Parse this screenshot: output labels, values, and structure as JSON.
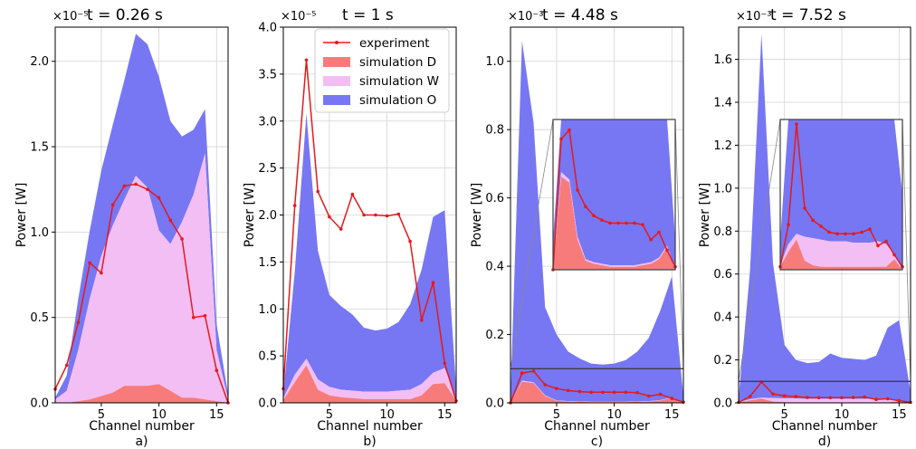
{
  "colors": {
    "experiment": "#e31a1c",
    "simD": "#f77b7b",
    "simW": "#f3bef3",
    "simO": "#7777f4",
    "grid": "#d4d4d4",
    "inset_box": "#3d3d3d"
  },
  "legend": {
    "experiment": "experiment",
    "simulation_d": "simulation D",
    "simulation_w": "simulation W",
    "simulation_o": "simulation O"
  },
  "chart_data": [
    {
      "type": "area",
      "title": "t = 0.26 s",
      "multiplier": "×10⁻⁵",
      "panel_label": "a)",
      "xlabel": "Channel number",
      "ylabel": "Power [W]",
      "xlim": [
        1,
        16
      ],
      "ylim": [
        0,
        2.2
      ],
      "xticks": [
        5,
        10,
        15
      ],
      "xtick_labels": [
        "5",
        "10",
        "15"
      ],
      "yticks": [
        0,
        0.5,
        1.0,
        1.5,
        2.0
      ],
      "ytick_labels": [
        "0.0",
        "0.5",
        "1.0",
        "1.5",
        "2.0"
      ],
      "x": [
        1,
        2,
        3,
        4,
        5,
        6,
        7,
        8,
        9,
        10,
        11,
        12,
        13,
        14,
        15,
        16
      ],
      "series": [
        {
          "name": "experiment",
          "kind": "line",
          "values": [
            0.08,
            0.22,
            0.47,
            0.82,
            0.76,
            1.16,
            1.27,
            1.28,
            1.25,
            1.2,
            1.07,
            0.96,
            0.5,
            0.51,
            0.19,
            0.0
          ]
        },
        {
          "name": "simulation D",
          "kind": "area",
          "values": [
            0,
            0,
            0.01,
            0.02,
            0.04,
            0.06,
            0.1,
            0.1,
            0.1,
            0.11,
            0.07,
            0.03,
            0.03,
            0.02,
            0.01,
            0
          ]
        },
        {
          "name": "simulation W",
          "kind": "area",
          "values": [
            0.02,
            0.07,
            0.31,
            0.61,
            0.86,
            1.04,
            1.19,
            1.33,
            1.26,
            1.01,
            0.93,
            1.06,
            1.22,
            1.46,
            0.31,
            0.02
          ]
        },
        {
          "name": "simulation O",
          "kind": "area",
          "values": [
            0.03,
            0.16,
            0.61,
            1.01,
            1.36,
            1.63,
            1.89,
            2.16,
            2.1,
            1.91,
            1.65,
            1.56,
            1.6,
            1.72,
            0.46,
            0.05
          ]
        }
      ]
    },
    {
      "type": "area",
      "title": "t = 1 s",
      "multiplier": "×10⁻⁵",
      "panel_label": "b)",
      "xlabel": "Channel number",
      "ylabel": "Power [W]",
      "xlim": [
        1,
        16
      ],
      "ylim": [
        0,
        4.0
      ],
      "xticks": [
        5,
        10,
        15
      ],
      "xtick_labels": [
        "5",
        "10",
        "15"
      ],
      "yticks": [
        0,
        0.5,
        1.0,
        1.5,
        2.0,
        2.5,
        3.0,
        3.5,
        4.0
      ],
      "ytick_labels": [
        "0.0",
        "0.5",
        "1.0",
        "1.5",
        "2.0",
        "2.5",
        "3.0",
        "3.5",
        "4.0"
      ],
      "x": [
        1,
        2,
        3,
        4,
        5,
        6,
        7,
        8,
        9,
        10,
        11,
        12,
        13,
        14,
        15,
        16
      ],
      "series": [
        {
          "name": "experiment",
          "kind": "line",
          "values": [
            0.15,
            2.1,
            3.65,
            2.25,
            1.98,
            1.85,
            2.22,
            2.0,
            2.0,
            1.99,
            2.01,
            1.72,
            0.88,
            1.28,
            0.42,
            0.02
          ]
        },
        {
          "name": "simulation D",
          "kind": "area",
          "values": [
            0.03,
            0.22,
            0.4,
            0.14,
            0.08,
            0.06,
            0.05,
            0.04,
            0.04,
            0.04,
            0.04,
            0.04,
            0.08,
            0.2,
            0.21,
            0.02
          ]
        },
        {
          "name": "simulation W",
          "kind": "area",
          "values": [
            0.05,
            0.3,
            0.47,
            0.25,
            0.17,
            0.14,
            0.13,
            0.12,
            0.12,
            0.12,
            0.13,
            0.14,
            0.2,
            0.32,
            0.37,
            0.05
          ]
        },
        {
          "name": "simulation O",
          "kind": "area",
          "values": [
            0.1,
            1.4,
            3.08,
            1.62,
            1.15,
            1.03,
            0.94,
            0.8,
            0.77,
            0.79,
            0.86,
            1.05,
            1.42,
            1.98,
            2.05,
            0.15
          ]
        }
      ]
    },
    {
      "type": "area",
      "title": "t = 4.48 s",
      "multiplier": "×10⁻³",
      "panel_label": "c)",
      "xlabel": "Channel number",
      "ylabel": "Power [W]",
      "xlim": [
        1,
        16
      ],
      "ylim": [
        0,
        1.1
      ],
      "xticks": [
        5,
        10,
        15
      ],
      "xtick_labels": [
        "5",
        "10",
        "15"
      ],
      "yticks": [
        0,
        0.2,
        0.4,
        0.6,
        0.8,
        1.0
      ],
      "ytick_labels": [
        "0.0",
        "0.2",
        "0.4",
        "0.6",
        "0.8",
        "1.0"
      ],
      "zoom_ymax": 0.1,
      "x": [
        1,
        2,
        3,
        4,
        5,
        6,
        7,
        8,
        9,
        10,
        11,
        12,
        13,
        14,
        15,
        16
      ],
      "series": [
        {
          "name": "experiment",
          "kind": "line",
          "values": [
            0.0,
            0.087,
            0.093,
            0.053,
            0.042,
            0.036,
            0.033,
            0.031,
            0.031,
            0.031,
            0.031,
            0.03,
            0.02,
            0.025,
            0.013,
            0.002
          ]
        },
        {
          "name": "simulation D",
          "kind": "area",
          "values": [
            0.0,
            0.062,
            0.058,
            0.02,
            0.006,
            0.004,
            0.003,
            0.002,
            0.002,
            0.002,
            0.002,
            0.003,
            0.004,
            0.007,
            0.015,
            0.0
          ]
        },
        {
          "name": "simulation W",
          "kind": "area",
          "values": [
            0.0,
            0.065,
            0.06,
            0.022,
            0.007,
            0.005,
            0.004,
            0.003,
            0.003,
            0.003,
            0.003,
            0.004,
            0.005,
            0.008,
            0.016,
            0.0
          ]
        },
        {
          "name": "simulation O",
          "kind": "area",
          "values": [
            0.02,
            1.06,
            0.82,
            0.28,
            0.2,
            0.15,
            0.13,
            0.115,
            0.112,
            0.115,
            0.125,
            0.15,
            0.19,
            0.27,
            0.37,
            0.02
          ]
        }
      ]
    },
    {
      "type": "area",
      "title": "t = 7.52 s",
      "multiplier": "×10⁻³",
      "panel_label": "d)",
      "xlabel": "Channel number",
      "ylabel": "Power [W]",
      "xlim": [
        1,
        16
      ],
      "ylim": [
        0,
        1.75
      ],
      "xticks": [
        5,
        10,
        15
      ],
      "xtick_labels": [
        "5",
        "10",
        "15"
      ],
      "yticks": [
        0,
        0.2,
        0.4,
        0.6,
        0.8,
        1.0,
        1.2,
        1.4,
        1.6
      ],
      "ytick_labels": [
        "0.0",
        "0.2",
        "0.4",
        "0.6",
        "0.8",
        "1.0",
        "1.2",
        "1.4",
        "1.6"
      ],
      "zoom_ymax": 0.1,
      "x": [
        1,
        2,
        3,
        4,
        5,
        6,
        7,
        8,
        9,
        10,
        11,
        12,
        13,
        14,
        15,
        16
      ],
      "series": [
        {
          "name": "experiment",
          "kind": "line",
          "values": [
            0.002,
            0.03,
            0.097,
            0.041,
            0.033,
            0.029,
            0.025,
            0.024,
            0.024,
            0.024,
            0.025,
            0.027,
            0.016,
            0.019,
            0.01,
            0.002
          ]
        },
        {
          "name": "simulation D",
          "kind": "area",
          "values": [
            0.002,
            0.012,
            0.02,
            0.006,
            0.003,
            0.002,
            0.002,
            0.002,
            0.002,
            0.002,
            0.002,
            0.002,
            0.002,
            0.002,
            0.007,
            0.0
          ]
        },
        {
          "name": "simulation W",
          "kind": "area",
          "values": [
            0.003,
            0.017,
            0.024,
            0.022,
            0.021,
            0.02,
            0.019,
            0.019,
            0.019,
            0.018,
            0.018,
            0.018,
            0.019,
            0.017,
            0.01,
            0.0
          ]
        },
        {
          "name": "simulation O",
          "kind": "area",
          "values": [
            0.02,
            0.62,
            1.72,
            0.65,
            0.27,
            0.2,
            0.185,
            0.19,
            0.23,
            0.21,
            0.205,
            0.2,
            0.22,
            0.35,
            0.385,
            0.05
          ]
        }
      ]
    }
  ]
}
